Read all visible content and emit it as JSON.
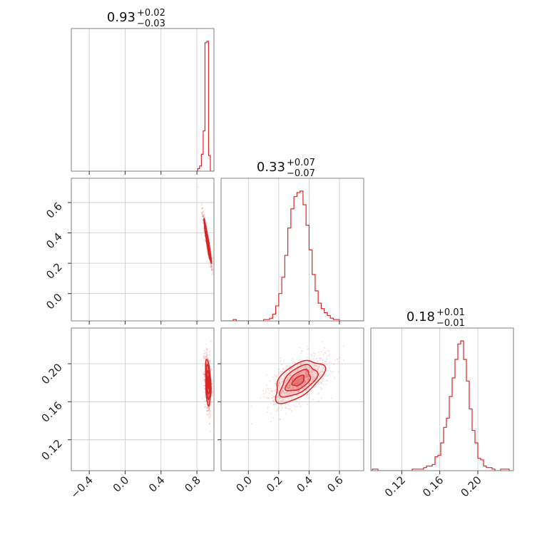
{
  "chart_data": {
    "type": "corner",
    "color": "#d62728",
    "parameters": [
      {
        "index": 0,
        "title_value": "0.93",
        "title_plus": "+0.02",
        "title_minus": "−0.03",
        "range": [
          -0.6,
          0.99
        ],
        "ticks": [
          -0.4,
          0.0,
          0.4,
          0.8
        ],
        "tick_labels": [
          "−0.4",
          "0.0",
          "0.4",
          "0.8"
        ],
        "hist_x": [
          0.8,
          0.82,
          0.84,
          0.86,
          0.88,
          0.9,
          0.92,
          0.94,
          0.96,
          0.98
        ],
        "hist_y": [
          0,
          2,
          4,
          13,
          31,
          99,
          100,
          12,
          0,
          0
        ]
      },
      {
        "index": 1,
        "title_value": "0.33",
        "title_plus": "+0.07",
        "title_minus": "−0.07",
        "range": [
          -0.18,
          0.76
        ],
        "ticks": [
          0.0,
          0.2,
          0.4,
          0.6
        ],
        "tick_labels": [
          "0.0",
          "0.2",
          "0.4",
          "0.6"
        ],
        "hist_x": [
          -0.17,
          -0.15,
          -0.13,
          -0.11,
          -0.09,
          -0.07,
          -0.05,
          -0.03,
          -0.01,
          0.01,
          0.03,
          0.05,
          0.07,
          0.09,
          0.11,
          0.13,
          0.15,
          0.17,
          0.19,
          0.21,
          0.23,
          0.25,
          0.27,
          0.29,
          0.31,
          0.33,
          0.35,
          0.37,
          0.39,
          0.41,
          0.43,
          0.45,
          0.47,
          0.49,
          0.51,
          0.53,
          0.55,
          0.57,
          0.59,
          0.61,
          0.63,
          0.65,
          0.67,
          0.69,
          0.71,
          0.73,
          0.75
        ],
        "hist_y": [
          0,
          0,
          0,
          0,
          1,
          0,
          0,
          0,
          0,
          0,
          0,
          0,
          0,
          0,
          1,
          1,
          2,
          5,
          11,
          20,
          32,
          48,
          68,
          82,
          91,
          94,
          95,
          85,
          70,
          52,
          34,
          22,
          13,
          9,
          6,
          4,
          2,
          1,
          1,
          0,
          0,
          0,
          0,
          0,
          0,
          0,
          0
        ]
      },
      {
        "index": 2,
        "title_value": "0.18",
        "title_plus": "+0.01",
        "title_minus": "−0.01",
        "range": [
          0.0875,
          0.2375
        ],
        "ticks": [
          0.12,
          0.16,
          0.2
        ],
        "tick_labels": [
          "0.12",
          "0.16",
          "0.20"
        ],
        "hist_x": [
          0.0875,
          0.0905,
          0.0935,
          0.0965,
          0.0995,
          0.1025,
          0.1055,
          0.1085,
          0.1115,
          0.1145,
          0.1175,
          0.1205,
          0.1235,
          0.1265,
          0.1295,
          0.1325,
          0.1355,
          0.1385,
          0.1415,
          0.1445,
          0.1475,
          0.1505,
          0.1535,
          0.1565,
          0.1595,
          0.1625,
          0.1655,
          0.1685,
          0.1715,
          0.1745,
          0.1775,
          0.1805,
          0.1835,
          0.1865,
          0.1895,
          0.1925,
          0.1955,
          0.1985,
          0.2015,
          0.2045,
          0.2075,
          0.2105,
          0.2135,
          0.2165,
          0.2195,
          0.2225,
          0.2255,
          0.2285,
          0.2315,
          0.2345
        ],
        "hist_y": [
          0,
          1,
          1,
          0,
          0,
          0,
          0,
          0,
          0,
          0,
          0,
          0,
          0,
          0,
          0,
          1,
          1,
          1,
          1,
          2,
          3,
          3,
          4,
          9,
          10,
          18,
          28,
          34,
          48,
          60,
          72,
          82,
          84,
          72,
          58,
          40,
          26,
          18,
          8,
          7,
          3,
          2,
          2,
          1,
          0,
          0,
          1,
          1,
          1,
          0
        ]
      }
    ],
    "pairs": [
      {
        "x": 0,
        "y": 1,
        "center": [
          0.92,
          0.34
        ],
        "sd": [
          0.02,
          0.07
        ],
        "rho": -0.95
      },
      {
        "x": 0,
        "y": 2,
        "center": [
          0.925,
          0.18
        ],
        "sd": [
          0.015,
          0.012
        ],
        "rho": -0.3
      },
      {
        "x": 1,
        "y": 2,
        "center": [
          0.33,
          0.182
        ],
        "sd": [
          0.08,
          0.011
        ],
        "rho": 0.55
      }
    ]
  }
}
